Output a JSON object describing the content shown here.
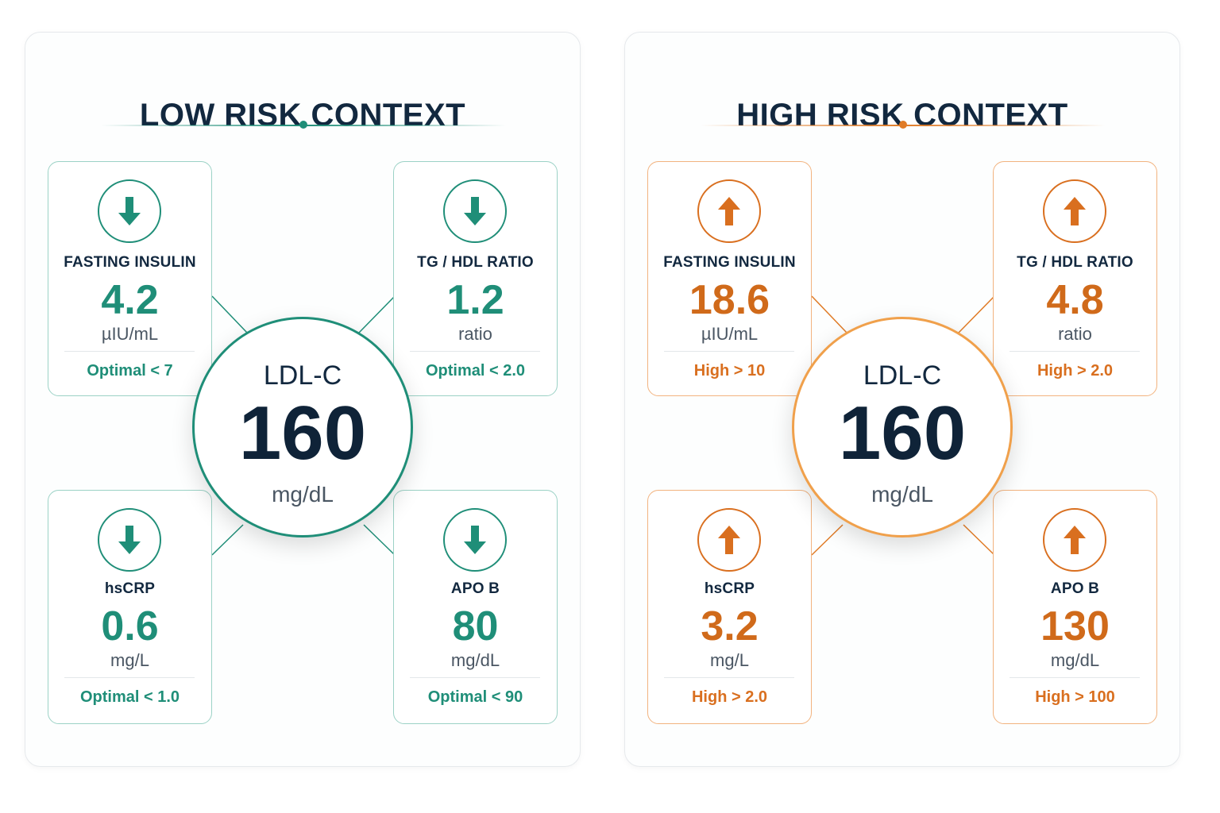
{
  "panels": [
    {
      "id": "low",
      "title": "LOW RISK CONTEXT",
      "accent": "#1f8e78",
      "center": {
        "label": "LDL-C",
        "value": "160",
        "unit": "mg/dL"
      },
      "cards": [
        {
          "label": "FASTING INSULIN",
          "value": "4.2",
          "unit": "µIU/mL",
          "reference": "Optimal < 7",
          "arrow": "arrow-down-icon"
        },
        {
          "label": "TG / HDL RATIO",
          "value": "1.2",
          "unit": "ratio",
          "reference": "Optimal < 2.0",
          "arrow": "arrow-down-icon"
        },
        {
          "label": "hsCRP",
          "value": "0.6",
          "unit": "mg/L",
          "reference": "Optimal < 1.0",
          "arrow": "arrow-down-icon"
        },
        {
          "label": "APO B",
          "value": "80",
          "unit": "mg/dL",
          "reference": "Optimal < 90",
          "arrow": "arrow-down-icon"
        }
      ]
    },
    {
      "id": "high",
      "title": "HIGH RISK CONTEXT",
      "accent": "#d96f1f",
      "center": {
        "label": "LDL-C",
        "value": "160",
        "unit": "mg/dL"
      },
      "cards": [
        {
          "label": "FASTING INSULIN",
          "value": "18.6",
          "unit": "µIU/mL",
          "reference": "High > 10",
          "arrow": "arrow-up-icon"
        },
        {
          "label": "TG / HDL RATIO",
          "value": "4.8",
          "unit": "ratio",
          "reference": "High > 2.0",
          "arrow": "arrow-up-icon"
        },
        {
          "label": "hsCRP",
          "value": "3.2",
          "unit": "mg/L",
          "reference": "High > 2.0",
          "arrow": "arrow-up-icon"
        },
        {
          "label": "APO B",
          "value": "130",
          "unit": "mg/dL",
          "reference": "High > 100",
          "arrow": "arrow-up-icon"
        }
      ]
    }
  ]
}
